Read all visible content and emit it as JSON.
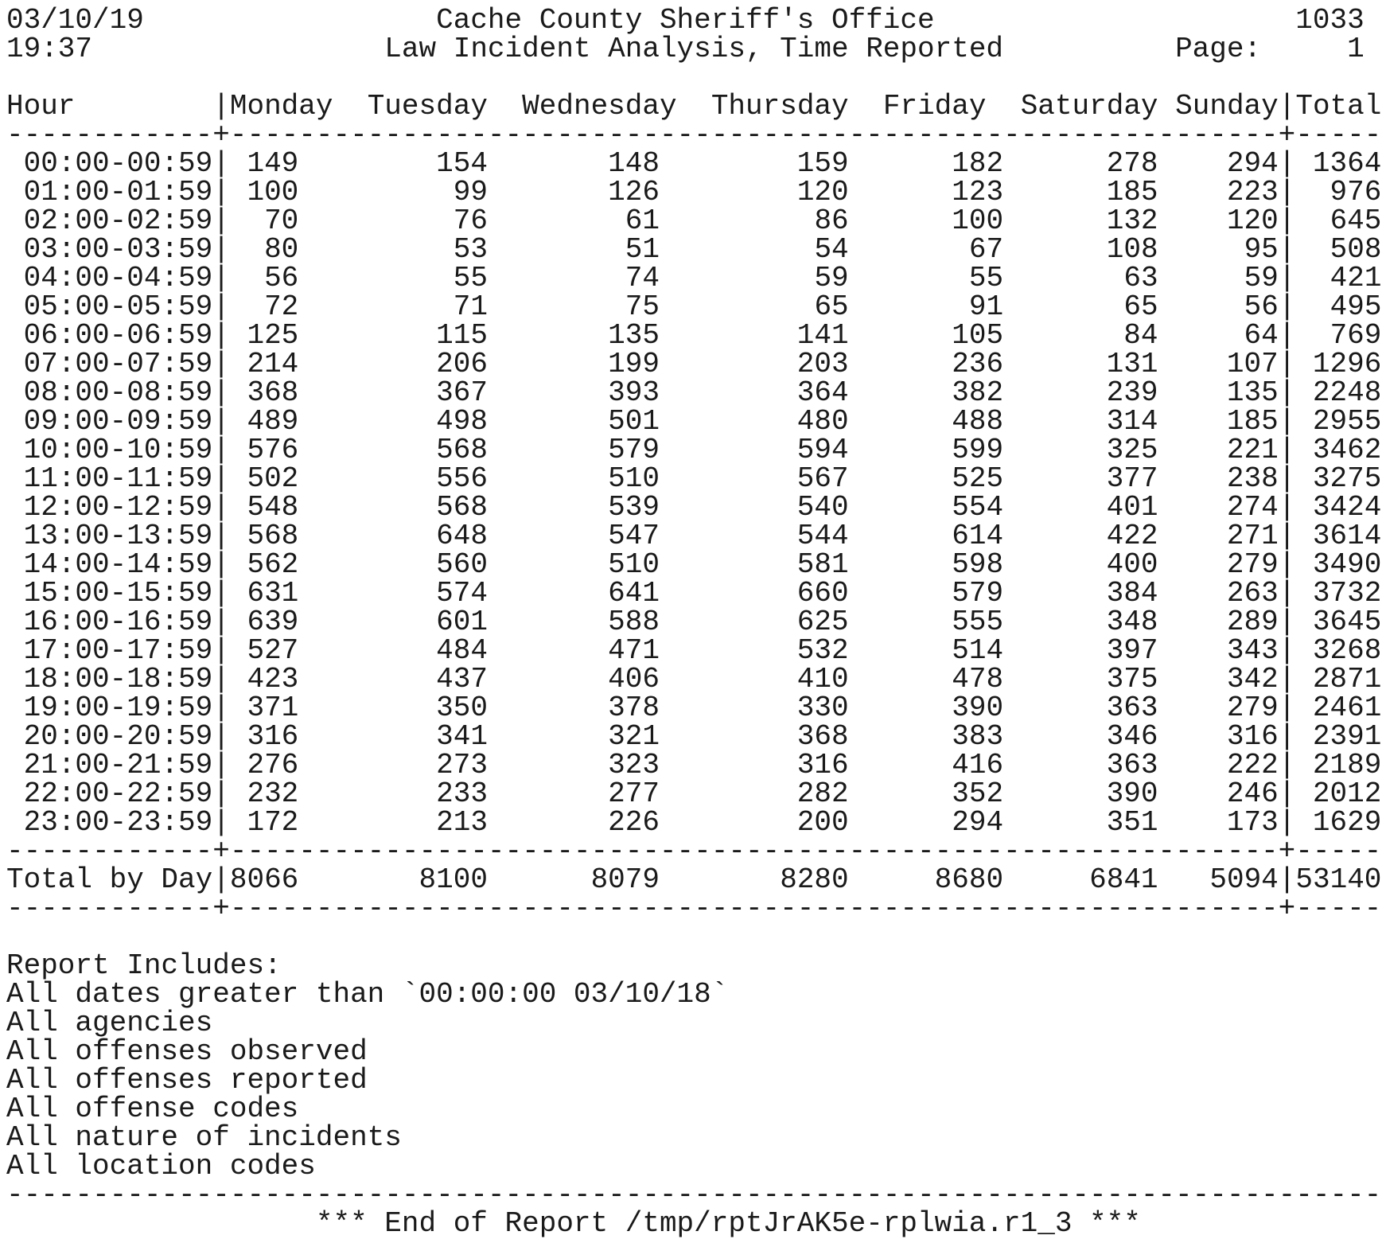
{
  "header": {
    "date": "03/10/19",
    "time": "19:37",
    "agency": "Cache County Sheriff's Office",
    "report_title": "Law Incident Analysis, Time Reported",
    "report_number": "1033",
    "page_label": "Page:",
    "page_number": "1"
  },
  "table": {
    "columns": [
      "Hour",
      "Monday",
      "Tuesday",
      "Wednesday",
      "Thursday",
      "Friday",
      "Saturday",
      "Sunday",
      "Total"
    ],
    "rows": [
      {
        "hour": "00:00-00:59",
        "values": [
          "149",
          "154",
          "148",
          "159",
          "182",
          "278",
          "294"
        ],
        "total": "1364"
      },
      {
        "hour": "01:00-01:59",
        "values": [
          "100",
          "99",
          "126",
          "120",
          "123",
          "185",
          "223"
        ],
        "total": "976"
      },
      {
        "hour": "02:00-02:59",
        "values": [
          "70",
          "76",
          "61",
          "86",
          "100",
          "132",
          "120"
        ],
        "total": "645"
      },
      {
        "hour": "03:00-03:59",
        "values": [
          "80",
          "53",
          "51",
          "54",
          "67",
          "108",
          "95"
        ],
        "total": "508"
      },
      {
        "hour": "04:00-04:59",
        "values": [
          "56",
          "55",
          "74",
          "59",
          "55",
          "63",
          "59"
        ],
        "total": "421"
      },
      {
        "hour": "05:00-05:59",
        "values": [
          "72",
          "71",
          "75",
          "65",
          "91",
          "65",
          "56"
        ],
        "total": "495"
      },
      {
        "hour": "06:00-06:59",
        "values": [
          "125",
          "115",
          "135",
          "141",
          "105",
          "84",
          "64"
        ],
        "total": "769"
      },
      {
        "hour": "07:00-07:59",
        "values": [
          "214",
          "206",
          "199",
          "203",
          "236",
          "131",
          "107"
        ],
        "total": "1296"
      },
      {
        "hour": "08:00-08:59",
        "values": [
          "368",
          "367",
          "393",
          "364",
          "382",
          "239",
          "135"
        ],
        "total": "2248"
      },
      {
        "hour": "09:00-09:59",
        "values": [
          "489",
          "498",
          "501",
          "480",
          "488",
          "314",
          "185"
        ],
        "total": "2955"
      },
      {
        "hour": "10:00-10:59",
        "values": [
          "576",
          "568",
          "579",
          "594",
          "599",
          "325",
          "221"
        ],
        "total": "3462"
      },
      {
        "hour": "11:00-11:59",
        "values": [
          "502",
          "556",
          "510",
          "567",
          "525",
          "377",
          "238"
        ],
        "total": "3275"
      },
      {
        "hour": "12:00-12:59",
        "values": [
          "548",
          "568",
          "539",
          "540",
          "554",
          "401",
          "274"
        ],
        "total": "3424"
      },
      {
        "hour": "13:00-13:59",
        "values": [
          "568",
          "648",
          "547",
          "544",
          "614",
          "422",
          "271"
        ],
        "total": "3614"
      },
      {
        "hour": "14:00-14:59",
        "values": [
          "562",
          "560",
          "510",
          "581",
          "598",
          "400",
          "279"
        ],
        "total": "3490"
      },
      {
        "hour": "15:00-15:59",
        "values": [
          "631",
          "574",
          "641",
          "660",
          "579",
          "384",
          "263"
        ],
        "total": "3732"
      },
      {
        "hour": "16:00-16:59",
        "values": [
          "639",
          "601",
          "588",
          "625",
          "555",
          "348",
          "289"
        ],
        "total": "3645"
      },
      {
        "hour": "17:00-17:59",
        "values": [
          "527",
          "484",
          "471",
          "532",
          "514",
          "397",
          "343"
        ],
        "total": "3268"
      },
      {
        "hour": "18:00-18:59",
        "values": [
          "423",
          "437",
          "406",
          "410",
          "478",
          "375",
          "342"
        ],
        "total": "2871"
      },
      {
        "hour": "19:00-19:59",
        "values": [
          "371",
          "350",
          "378",
          "330",
          "390",
          "363",
          "279"
        ],
        "total": "2461"
      },
      {
        "hour": "20:00-20:59",
        "values": [
          "316",
          "341",
          "321",
          "368",
          "383",
          "346",
          "316"
        ],
        "total": "2391"
      },
      {
        "hour": "21:00-21:59",
        "values": [
          "276",
          "273",
          "323",
          "316",
          "416",
          "363",
          "222"
        ],
        "total": "2189"
      },
      {
        "hour": "22:00-22:59",
        "values": [
          "232",
          "233",
          "277",
          "282",
          "352",
          "390",
          "246"
        ],
        "total": "2012"
      },
      {
        "hour": "23:00-23:59",
        "values": [
          "172",
          "213",
          "226",
          "200",
          "294",
          "351",
          "173"
        ],
        "total": "1629"
      }
    ],
    "totals": {
      "label": "Total by Day",
      "values": [
        "8066",
        "8100",
        "8079",
        "8280",
        "8680",
        "6841",
        "5094"
      ],
      "grand_total": "53140"
    }
  },
  "includes": {
    "heading": "Report Includes:",
    "items": [
      "All dates greater than `00:00:00 03/10/18`",
      "All agencies",
      "All offenses observed",
      "All offenses reported",
      "All offense codes",
      "All nature of incidents",
      "All location codes"
    ]
  },
  "footer": "*** End of Report /tmp/rptJrAK5e-rplwia.r1_3 ***"
}
